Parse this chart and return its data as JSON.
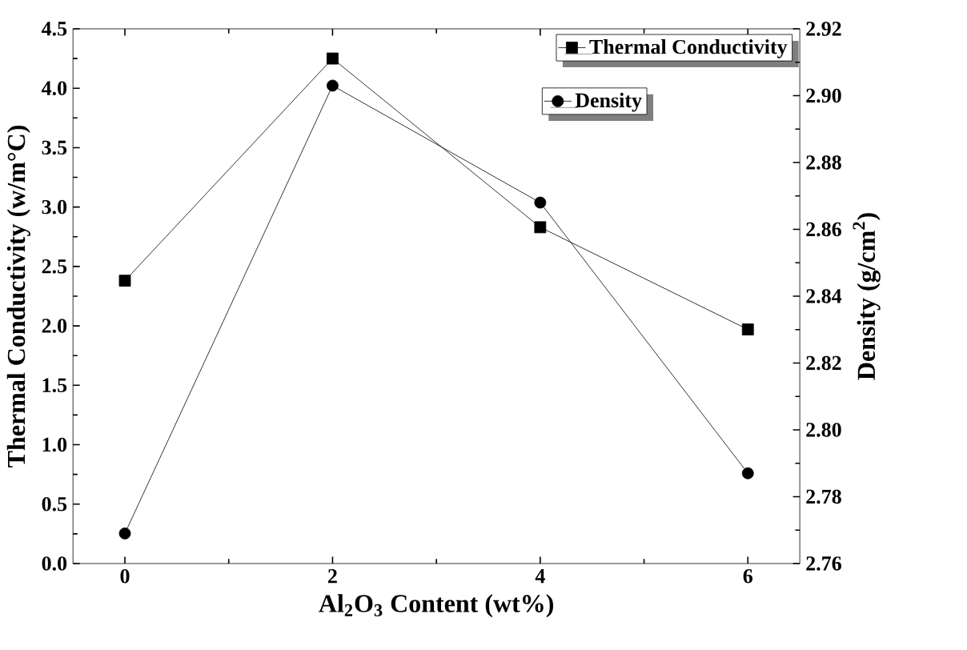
{
  "chart_data": {
    "type": "line",
    "xlabel": "Al$_{2}$O$_{3}$ Content (wt%)",
    "ylabel": "Thermal Conductivity (w/m°C)",
    "y2label": "Density (g/cm$^{2}$)",
    "x": [
      0,
      2,
      4,
      6
    ],
    "xlim": [
      -0.5,
      6.5
    ],
    "xticks": [
      0,
      2,
      4,
      6
    ],
    "ylim": [
      0,
      4.5
    ],
    "yticks": [
      {
        "value": 0,
        "label": "0.0"
      },
      0.5,
      {
        "value": 1,
        "label": "1.0"
      },
      1.5,
      {
        "value": 2,
        "label": "2.0"
      },
      2.5,
      {
        "value": 3,
        "label": "3.0"
      },
      3.5,
      {
        "value": 4,
        "label": "4.0"
      },
      4.5
    ],
    "y2lim": [
      2.76,
      2.92
    ],
    "y2ticks": [
      2.76,
      2.78,
      {
        "value": 2.8,
        "label": "2.80"
      },
      2.82,
      2.84,
      2.86,
      2.88,
      {
        "value": 2.9,
        "label": "2.90"
      },
      2.92
    ],
    "legend": "top right",
    "line_style": "solid",
    "series": [
      {
        "name": "Thermal Conductivity",
        "color": "#000000",
        "marker": "square",
        "values": [
          2.38,
          4.25,
          2.83,
          1.97
        ]
      },
      {
        "name": "Density",
        "color": "#000000",
        "marker": "circle",
        "axis": "y2",
        "values": [
          2.769,
          2.903,
          2.868,
          2.787
        ]
      }
    ]
  }
}
